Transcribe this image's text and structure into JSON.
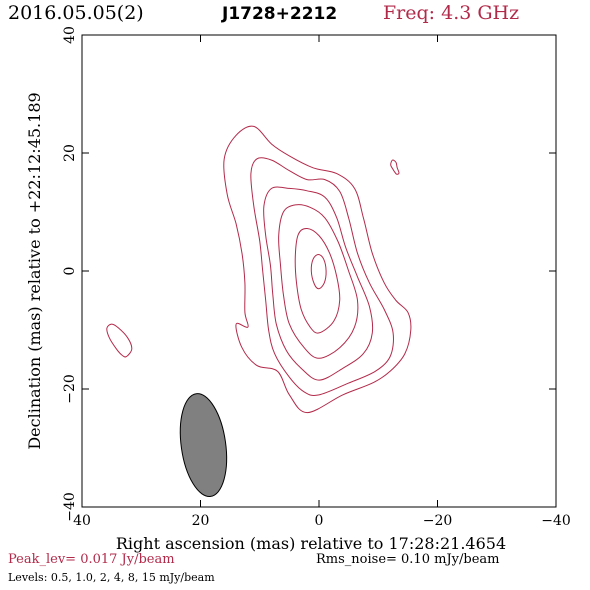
{
  "header": {
    "date": "2016.05.05(2)",
    "source": "J1728+2212",
    "frequency": "Freq: 4.3 GHz"
  },
  "chart_data": {
    "type": "contour",
    "xlabel": "Right ascension (mas) relative to 17:28:21.4654",
    "ylabel": "Declination (mas) relative to +22:12:45.189",
    "xlim": [
      40,
      -40
    ],
    "ylim": [
      -40,
      40
    ],
    "x_ticks": [
      40,
      20,
      0,
      -20,
      -40
    ],
    "y_ticks": [
      -40,
      -20,
      0,
      20,
      40
    ],
    "x_tick_labels": [
      "40",
      "20",
      "0",
      "−20",
      "−40"
    ],
    "y_tick_labels": [
      "−40",
      "−20",
      "0",
      "20",
      "40"
    ],
    "contour_color": "#b22a4a",
    "contour_levels_mJy": [
      0.5,
      1.0,
      2,
      4,
      8,
      15
    ],
    "peak_level": "Peak_lev=  0.017 Jy/beam",
    "rms_noise": "Rms_noise= 0.10 mJy/beam",
    "levels_text": "Levels: 0.5, 1.0,   2,   4,   8,   15 mJy/beam",
    "beam": {
      "center": [
        19.5,
        -29.5
      ],
      "major_mas": 17.5,
      "minor_mas": 7.5,
      "pa_deg": -8,
      "fill": "#808080"
    },
    "contours": [
      [
        [
          2,
          -24
        ],
        [
          -4,
          -21
        ],
        [
          -9,
          -19
        ],
        [
          -12,
          -17
        ],
        [
          -14.5,
          -14
        ],
        [
          -15.5,
          -10
        ],
        [
          -15,
          -7
        ],
        [
          -13,
          -5
        ],
        [
          -11,
          -2
        ],
        [
          -9,
          3
        ],
        [
          -7.5,
          9
        ],
        [
          -6,
          14
        ],
        [
          -3,
          16.5
        ],
        [
          1,
          17.5
        ],
        [
          5,
          19.5
        ],
        [
          8,
          21.5
        ],
        [
          11,
          24.5
        ],
        [
          14,
          23
        ],
        [
          16,
          19
        ],
        [
          15.5,
          13
        ],
        [
          14,
          8
        ],
        [
          13,
          3
        ],
        [
          12.5,
          -2
        ],
        [
          12.5,
          -7
        ],
        [
          12,
          -9.5
        ],
        [
          14,
          -9
        ],
        [
          13,
          -13
        ],
        [
          10.5,
          -16
        ],
        [
          7,
          -17
        ],
        [
          5,
          -21
        ]
      ],
      [
        [
          0,
          -21
        ],
        [
          -5,
          -19
        ],
        [
          -9.5,
          -17
        ],
        [
          -12,
          -14.5
        ],
        [
          -12.5,
          -10.5
        ],
        [
          -11,
          -6.5
        ],
        [
          -8.5,
          -2
        ],
        [
          -6.5,
          3
        ],
        [
          -5,
          9
        ],
        [
          -3.5,
          13.5
        ],
        [
          -1,
          15.5
        ],
        [
          2,
          15.5
        ],
        [
          5,
          17
        ],
        [
          8,
          18.8
        ],
        [
          10.5,
          19
        ],
        [
          11.5,
          16.5
        ],
        [
          11,
          11
        ],
        [
          10,
          5
        ],
        [
          9.5,
          0
        ],
        [
          9,
          -5
        ],
        [
          8.5,
          -10
        ],
        [
          7.5,
          -14
        ],
        [
          5,
          -18
        ],
        [
          2.5,
          -20.5
        ]
      ],
      [
        [
          0,
          -18.5
        ],
        [
          -4,
          -16.5
        ],
        [
          -7.5,
          -14
        ],
        [
          -9,
          -10.5
        ],
        [
          -8.5,
          -6
        ],
        [
          -6.5,
          -1
        ],
        [
          -4.5,
          4
        ],
        [
          -3,
          9
        ],
        [
          -1,
          12.5
        ],
        [
          2,
          13.6
        ],
        [
          5,
          14
        ],
        [
          8,
          14
        ],
        [
          9.3,
          11
        ],
        [
          9,
          6
        ],
        [
          8.2,
          1
        ],
        [
          7.8,
          -4
        ],
        [
          7.2,
          -9
        ],
        [
          5.5,
          -13.5
        ],
        [
          3,
          -16.5
        ]
      ],
      [
        [
          0,
          -14.8
        ],
        [
          -3.5,
          -13
        ],
        [
          -6,
          -9.5
        ],
        [
          -6.5,
          -5
        ],
        [
          -5,
          0
        ],
        [
          -3.2,
          5
        ],
        [
          -1,
          9
        ],
        [
          1.5,
          10.8
        ],
        [
          4,
          11.2
        ],
        [
          6,
          10
        ],
        [
          6.8,
          6
        ],
        [
          6.5,
          1
        ],
        [
          6,
          -4
        ],
        [
          5,
          -9
        ],
        [
          2.5,
          -13
        ]
      ],
      [
        [
          0,
          -10.5
        ],
        [
          -2.5,
          -8.5
        ],
        [
          -3.5,
          -5
        ],
        [
          -3,
          -1
        ],
        [
          -1.8,
          3
        ],
        [
          0,
          6
        ],
        [
          2,
          7.2
        ],
        [
          3.5,
          6.2
        ],
        [
          4,
          2.5
        ],
        [
          3.8,
          -2
        ],
        [
          3,
          -6.5
        ],
        [
          1.5,
          -9.5
        ]
      ],
      [
        [
          0,
          -3
        ],
        [
          -0.9,
          -2
        ],
        [
          -1.2,
          0
        ],
        [
          -0.8,
          2
        ],
        [
          0.1,
          2.8
        ],
        [
          1,
          2
        ],
        [
          1.3,
          0
        ],
        [
          0.8,
          -2.2
        ]
      ],
      [
        [
          32.5,
          -14.5
        ],
        [
          31.6,
          -13.2
        ],
        [
          32.3,
          -11.3
        ],
        [
          33.9,
          -9.6
        ],
        [
          35,
          -9
        ],
        [
          35.8,
          -9.7
        ],
        [
          35.4,
          -11.3
        ],
        [
          34.2,
          -13.2
        ],
        [
          33.2,
          -14.3
        ]
      ],
      [
        [
          -12.5,
          17.2
        ],
        [
          -12.1,
          18
        ],
        [
          -12.4,
          18.8
        ],
        [
          -13,
          18.4
        ],
        [
          -13.2,
          17.5
        ],
        [
          -13.5,
          16.6
        ],
        [
          -13.1,
          16.4
        ],
        [
          -12.7,
          16.9
        ]
      ]
    ]
  }
}
